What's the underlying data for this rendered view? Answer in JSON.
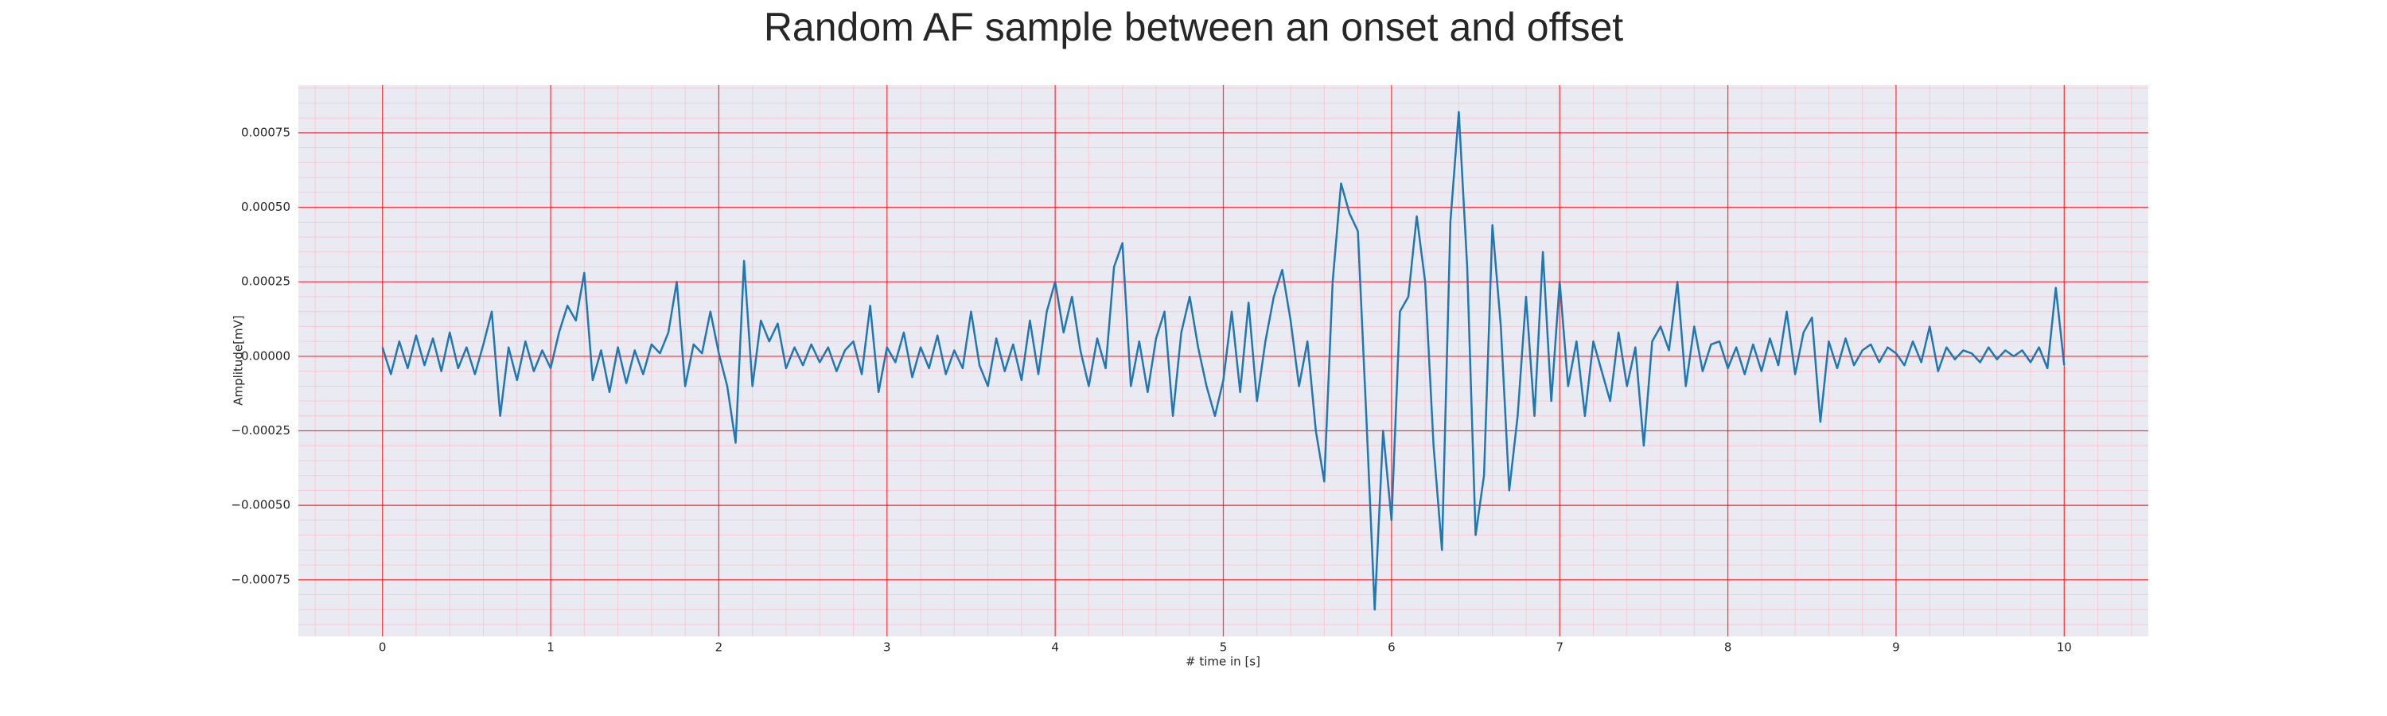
{
  "chart_data": {
    "type": "line",
    "title": "Random AF sample between an onset and offset",
    "x_label": "# time in [s]",
    "y_label": "Amplitude[mV]",
    "color": "#1f77b4",
    "xlim": [
      -0.5,
      10.5
    ],
    "xticks": [
      0,
      1,
      2,
      3,
      4,
      5,
      6,
      7,
      8,
      9,
      10
    ],
    "ylim": [
      -0.00094,
      0.00091
    ],
    "yticks": [
      {
        "value": -0.00075,
        "label": "−0.00075"
      },
      {
        "value": -0.0005,
        "label": "−0.00050"
      },
      {
        "value": -0.00025,
        "label": "−0.00025"
      },
      {
        "value": 0,
        "label": "0.00000"
      },
      {
        "value": 0.00025,
        "label": "0.00025"
      },
      {
        "value": 0.0005,
        "label": "0.00050"
      },
      {
        "value": 0.00075,
        "label": "0.00075"
      }
    ],
    "grid": true,
    "minor_grid": true,
    "x": [
      0,
      0.05,
      0.1,
      0.15,
      0.2,
      0.25,
      0.3,
      0.35,
      0.4,
      0.45,
      0.5,
      0.55,
      0.6,
      0.65,
      0.7,
      0.75,
      0.8,
      0.85,
      0.9,
      0.95,
      1,
      1.05,
      1.1,
      1.15,
      1.2,
      1.25,
      1.3,
      1.35,
      1.4,
      1.45,
      1.5,
      1.55,
      1.6,
      1.65,
      1.7,
      1.75,
      1.8,
      1.85,
      1.9,
      1.95,
      2,
      2.05,
      2.1,
      2.15,
      2.2,
      2.25,
      2.3,
      2.35,
      2.4,
      2.45,
      2.5,
      2.55,
      2.6,
      2.65,
      2.7,
      2.75,
      2.8,
      2.85,
      2.9,
      2.95,
      3,
      3.05,
      3.1,
      3.15,
      3.2,
      3.25,
      3.3,
      3.35,
      3.4,
      3.45,
      3.5,
      3.55,
      3.6,
      3.65,
      3.7,
      3.75,
      3.8,
      3.85,
      3.9,
      3.95,
      4,
      4.05,
      4.1,
      4.15,
      4.2,
      4.25,
      4.3,
      4.35,
      4.4,
      4.45,
      4.5,
      4.55,
      4.6,
      4.65,
      4.7,
      4.75,
      4.8,
      4.85,
      4.9,
      4.95,
      5,
      5.05,
      5.1,
      5.15,
      5.2,
      5.25,
      5.3,
      5.35,
      5.4,
      5.45,
      5.5,
      5.55,
      5.6,
      5.65,
      5.7,
      5.75,
      5.8,
      5.85,
      5.9,
      5.95,
      6,
      6.05,
      6.1,
      6.15,
      6.2,
      6.25,
      6.3,
      6.35,
      6.4,
      6.45,
      6.5,
      6.55,
      6.6,
      6.65,
      6.7,
      6.75,
      6.8,
      6.85,
      6.9,
      6.95,
      7,
      7.05,
      7.1,
      7.15,
      7.2,
      7.25,
      7.3,
      7.35,
      7.4,
      7.45,
      7.5,
      7.55,
      7.6,
      7.65,
      7.7,
      7.75,
      7.8,
      7.85,
      7.9,
      7.95,
      8,
      8.05,
      8.1,
      8.15,
      8.2,
      8.25,
      8.3,
      8.35,
      8.4,
      8.45,
      8.5,
      8.55,
      8.6,
      8.65,
      8.7,
      8.75,
      8.8,
      8.85,
      8.9,
      8.95,
      9,
      9.05,
      9.1,
      9.15,
      9.2,
      9.25,
      9.3,
      9.35,
      9.4,
      9.45,
      9.5,
      9.55,
      9.6,
      9.65,
      9.7,
      9.75,
      9.8,
      9.85,
      9.9,
      9.95,
      10
    ],
    "values": [
      3e-05,
      -6e-05,
      5e-05,
      -4e-05,
      7e-05,
      -3e-05,
      6e-05,
      -5e-05,
      8e-05,
      -4e-05,
      3e-05,
      -6e-05,
      4e-05,
      0.00015,
      -0.0002,
      3e-05,
      -8e-05,
      5e-05,
      -5e-05,
      2e-05,
      -4e-05,
      8e-05,
      0.00017,
      0.00012,
      0.00028,
      -8e-05,
      2e-05,
      -0.00012,
      3e-05,
      -9e-05,
      2e-05,
      -6e-05,
      4e-05,
      1e-05,
      8e-05,
      0.00025,
      -0.0001,
      4e-05,
      1e-05,
      0.00015,
      1e-05,
      -0.0001,
      -0.00029,
      0.00032,
      -0.0001,
      0.00012,
      5e-05,
      0.00011,
      -4e-05,
      3e-05,
      -3e-05,
      4e-05,
      -2e-05,
      3e-05,
      -5e-05,
      2e-05,
      5e-05,
      -6e-05,
      0.00017,
      -0.00012,
      3e-05,
      -2e-05,
      8e-05,
      -7e-05,
      3e-05,
      -4e-05,
      7e-05,
      -6e-05,
      2e-05,
      -4e-05,
      0.00015,
      -3e-05,
      -0.0001,
      6e-05,
      -5e-05,
      4e-05,
      -8e-05,
      0.00012,
      -6e-05,
      0.00015,
      0.00025,
      8e-05,
      0.0002,
      2e-05,
      -0.0001,
      6e-05,
      -4e-05,
      0.0003,
      0.00038,
      -0.0001,
      5e-05,
      -0.00012,
      6e-05,
      0.00015,
      -0.0002,
      8e-05,
      0.0002,
      3e-05,
      -0.0001,
      -0.0002,
      -8e-05,
      0.00015,
      -0.00012,
      0.00018,
      -0.00015,
      5e-05,
      0.0002,
      0.00029,
      0.00012,
      -0.0001,
      5e-05,
      -0.00025,
      -0.00042,
      0.00025,
      0.00058,
      0.00048,
      0.00042,
      -0.0002,
      -0.00085,
      -0.00025,
      -0.00055,
      0.00015,
      0.0002,
      0.00047,
      0.00025,
      -0.0003,
      -0.00065,
      0.00045,
      0.00082,
      0.0003,
      -0.0006,
      -0.0004,
      0.00044,
      0.0001,
      -0.00045,
      -0.0002,
      0.0002,
      -0.0002,
      0.00035,
      -0.00015,
      0.00025,
      -0.0001,
      5e-05,
      -0.0002,
      5e-05,
      -5e-05,
      -0.00015,
      8e-05,
      -0.0001,
      3e-05,
      -0.0003,
      5e-05,
      0.0001,
      2e-05,
      0.00025,
      -0.0001,
      0.0001,
      -5e-05,
      4e-05,
      5e-05,
      -4e-05,
      3e-05,
      -6e-05,
      4e-05,
      -5e-05,
      6e-05,
      -3e-05,
      0.00015,
      -6e-05,
      8e-05,
      0.00013,
      -0.00022,
      5e-05,
      -4e-05,
      6e-05,
      -3e-05,
      2e-05,
      4e-05,
      -2e-05,
      3e-05,
      1e-05,
      -3e-05,
      5e-05,
      -2e-05,
      0.0001,
      -5e-05,
      3e-05,
      -1e-05,
      2e-05,
      1e-05,
      -2e-05,
      3e-05,
      -1e-05,
      2e-05,
      0,
      2e-05,
      -2e-05,
      3e-05,
      -4e-05,
      0.00023,
      -3e-05
    ]
  }
}
